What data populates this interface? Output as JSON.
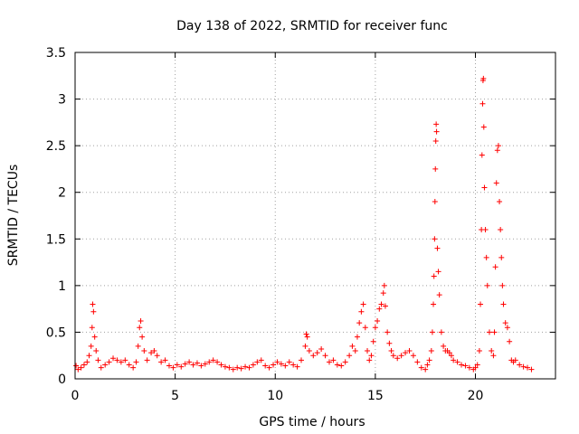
{
  "chart_data": {
    "type": "scatter",
    "title": "Day 138 of 2022, SRMTID for receiver func",
    "xlabel": "GPS time / hours",
    "ylabel": "SRMTID / TECUs",
    "xlim": [
      0,
      24
    ],
    "ylim": [
      0,
      3.5
    ],
    "x_ticks": [
      0,
      5,
      10,
      15,
      20
    ],
    "x_tick_labels": [
      "0",
      "5",
      "10",
      "15",
      "20"
    ],
    "y_ticks": [
      0,
      0.5,
      1,
      1.5,
      2,
      2.5,
      3,
      3.5
    ],
    "y_tick_labels": [
      "0",
      "0.5",
      "1",
      "1.5",
      "2",
      "2.5",
      "3",
      "3.5"
    ],
    "grid": true,
    "marker": "plus",
    "marker_color": "#ff0000",
    "series": [
      {
        "name": "SRMTID",
        "points": [
          [
            0.05,
            0.14
          ],
          [
            0.15,
            0.1
          ],
          [
            0.3,
            0.12
          ],
          [
            0.45,
            0.15
          ],
          [
            0.6,
            0.18
          ],
          [
            0.7,
            0.25
          ],
          [
            0.8,
            0.35
          ],
          [
            0.85,
            0.55
          ],
          [
            0.88,
            0.8
          ],
          [
            0.92,
            0.72
          ],
          [
            0.98,
            0.45
          ],
          [
            1.05,
            0.3
          ],
          [
            1.15,
            0.2
          ],
          [
            1.3,
            0.12
          ],
          [
            1.5,
            0.15
          ],
          [
            1.7,
            0.18
          ],
          [
            1.9,
            0.22
          ],
          [
            2.1,
            0.2
          ],
          [
            2.3,
            0.18
          ],
          [
            2.5,
            0.2
          ],
          [
            2.7,
            0.15
          ],
          [
            2.9,
            0.12
          ],
          [
            3.05,
            0.18
          ],
          [
            3.15,
            0.35
          ],
          [
            3.22,
            0.55
          ],
          [
            3.28,
            0.62
          ],
          [
            3.35,
            0.45
          ],
          [
            3.45,
            0.3
          ],
          [
            3.6,
            0.2
          ],
          [
            3.8,
            0.28
          ],
          [
            3.95,
            0.3
          ],
          [
            4.1,
            0.25
          ],
          [
            4.3,
            0.18
          ],
          [
            4.5,
            0.2
          ],
          [
            4.7,
            0.14
          ],
          [
            4.9,
            0.12
          ],
          [
            5.1,
            0.15
          ],
          [
            5.3,
            0.13
          ],
          [
            5.5,
            0.16
          ],
          [
            5.7,
            0.18
          ],
          [
            5.9,
            0.15
          ],
          [
            6.1,
            0.17
          ],
          [
            6.3,
            0.14
          ],
          [
            6.5,
            0.16
          ],
          [
            6.7,
            0.18
          ],
          [
            6.9,
            0.2
          ],
          [
            7.1,
            0.18
          ],
          [
            7.3,
            0.15
          ],
          [
            7.5,
            0.13
          ],
          [
            7.7,
            0.12
          ],
          [
            7.9,
            0.1
          ],
          [
            8.1,
            0.12
          ],
          [
            8.3,
            0.11
          ],
          [
            8.5,
            0.13
          ],
          [
            8.7,
            0.12
          ],
          [
            8.9,
            0.15
          ],
          [
            9.1,
            0.18
          ],
          [
            9.3,
            0.2
          ],
          [
            9.5,
            0.14
          ],
          [
            9.7,
            0.12
          ],
          [
            9.9,
            0.15
          ],
          [
            10.1,
            0.18
          ],
          [
            10.3,
            0.16
          ],
          [
            10.5,
            0.14
          ],
          [
            10.7,
            0.18
          ],
          [
            10.9,
            0.15
          ],
          [
            11.1,
            0.13
          ],
          [
            11.3,
            0.2
          ],
          [
            11.5,
            0.35
          ],
          [
            11.55,
            0.48
          ],
          [
            11.6,
            0.45
          ],
          [
            11.7,
            0.3
          ],
          [
            11.9,
            0.25
          ],
          [
            12.1,
            0.28
          ],
          [
            12.3,
            0.32
          ],
          [
            12.5,
            0.25
          ],
          [
            12.7,
            0.18
          ],
          [
            12.9,
            0.2
          ],
          [
            13.1,
            0.15
          ],
          [
            13.3,
            0.14
          ],
          [
            13.5,
            0.18
          ],
          [
            13.7,
            0.25
          ],
          [
            13.85,
            0.35
          ],
          [
            14.0,
            0.3
          ],
          [
            14.1,
            0.45
          ],
          [
            14.2,
            0.6
          ],
          [
            14.3,
            0.72
          ],
          [
            14.4,
            0.8
          ],
          [
            14.5,
            0.55
          ],
          [
            14.6,
            0.3
          ],
          [
            14.7,
            0.2
          ],
          [
            14.8,
            0.25
          ],
          [
            14.9,
            0.4
          ],
          [
            15.0,
            0.55
          ],
          [
            15.1,
            0.62
          ],
          [
            15.2,
            0.75
          ],
          [
            15.3,
            0.8
          ],
          [
            15.4,
            0.92
          ],
          [
            15.45,
            1.0
          ],
          [
            15.5,
            0.78
          ],
          [
            15.6,
            0.5
          ],
          [
            15.7,
            0.38
          ],
          [
            15.8,
            0.3
          ],
          [
            15.9,
            0.25
          ],
          [
            16.1,
            0.22
          ],
          [
            16.3,
            0.25
          ],
          [
            16.5,
            0.28
          ],
          [
            16.7,
            0.3
          ],
          [
            16.9,
            0.25
          ],
          [
            17.1,
            0.18
          ],
          [
            17.3,
            0.12
          ],
          [
            17.5,
            0.1
          ],
          [
            17.6,
            0.15
          ],
          [
            17.7,
            0.2
          ],
          [
            17.8,
            0.3
          ],
          [
            17.85,
            0.5
          ],
          [
            17.9,
            0.8
          ],
          [
            17.93,
            1.1
          ],
          [
            17.96,
            1.5
          ],
          [
            17.98,
            1.9
          ],
          [
            18.0,
            2.25
          ],
          [
            18.02,
            2.55
          ],
          [
            18.04,
            2.73
          ],
          [
            18.06,
            2.65
          ],
          [
            18.1,
            1.4
          ],
          [
            18.15,
            1.15
          ],
          [
            18.2,
            0.9
          ],
          [
            18.3,
            0.5
          ],
          [
            18.4,
            0.35
          ],
          [
            18.5,
            0.3
          ],
          [
            18.6,
            0.3
          ],
          [
            18.7,
            0.28
          ],
          [
            18.8,
            0.25
          ],
          [
            18.9,
            0.2
          ],
          [
            19.1,
            0.18
          ],
          [
            19.3,
            0.15
          ],
          [
            19.5,
            0.14
          ],
          [
            19.7,
            0.12
          ],
          [
            19.9,
            0.1
          ],
          [
            20.0,
            0.12
          ],
          [
            20.1,
            0.15
          ],
          [
            20.2,
            0.3
          ],
          [
            20.25,
            0.8
          ],
          [
            20.3,
            1.6
          ],
          [
            20.33,
            2.4
          ],
          [
            20.36,
            2.95
          ],
          [
            20.38,
            3.2
          ],
          [
            20.4,
            3.22
          ],
          [
            20.42,
            2.7
          ],
          [
            20.45,
            2.05
          ],
          [
            20.5,
            1.6
          ],
          [
            20.55,
            1.3
          ],
          [
            20.6,
            1.0
          ],
          [
            20.7,
            0.5
          ],
          [
            20.8,
            0.3
          ],
          [
            20.9,
            0.25
          ],
          [
            20.95,
            0.5
          ],
          [
            21.0,
            1.2
          ],
          [
            21.05,
            2.1
          ],
          [
            21.1,
            2.45
          ],
          [
            21.15,
            2.5
          ],
          [
            21.2,
            1.9
          ],
          [
            21.25,
            1.6
          ],
          [
            21.3,
            1.3
          ],
          [
            21.35,
            1.0
          ],
          [
            21.4,
            0.8
          ],
          [
            21.5,
            0.6
          ],
          [
            21.6,
            0.55
          ],
          [
            21.7,
            0.4
          ],
          [
            21.8,
            0.2
          ],
          [
            21.9,
            0.18
          ],
          [
            22.0,
            0.2
          ],
          [
            22.2,
            0.15
          ],
          [
            22.4,
            0.13
          ],
          [
            22.6,
            0.12
          ],
          [
            22.8,
            0.1
          ]
        ]
      }
    ]
  }
}
